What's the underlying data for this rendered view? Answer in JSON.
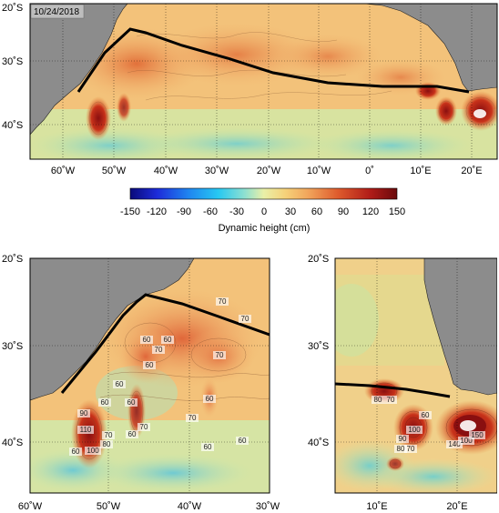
{
  "top_map": {
    "date": "10/24/2018",
    "lat_ticks": [
      "20˚S",
      "30˚S",
      "40˚S"
    ],
    "lon_ticks": [
      "60˚W",
      "50˚W",
      "40˚W",
      "30˚W",
      "20˚W",
      "10˚W",
      "0˚",
      "10˚E",
      "20˚E"
    ]
  },
  "colorbar": {
    "ticks": [
      "-150",
      "-120",
      "-90",
      "-60",
      "-30",
      "0",
      "30",
      "60",
      "90",
      "120",
      "150"
    ],
    "label": "Dynamic height (cm)"
  },
  "left_map": {
    "lat_ticks": [
      "20˚S",
      "30˚S",
      "40˚S"
    ],
    "lon_ticks": [
      "60˚W",
      "50˚W",
      "40˚W",
      "30˚W"
    ],
    "contour_labels": [
      "70",
      "70",
      "60",
      "70",
      "60",
      "70",
      "60",
      "60",
      "60",
      "60",
      "70",
      "60",
      "60",
      "60",
      "90",
      "110",
      "100",
      "80",
      "70",
      "60",
      "70",
      "60"
    ]
  },
  "right_map": {
    "lat_ticks": [
      "20˚S",
      "30˚S",
      "40˚S"
    ],
    "lon_ticks": [
      "10˚E",
      "20˚E"
    ],
    "contour_labels": [
      "80",
      "70",
      "90",
      "100",
      "70",
      "80",
      "60",
      "140",
      "100",
      "150"
    ]
  },
  "colors": {
    "land": "#8c8c8c",
    "ocean_base": "#f3c27a",
    "warm": "#c8321a",
    "hot": "#8a0f10",
    "cool": "#86d3c9"
  }
}
